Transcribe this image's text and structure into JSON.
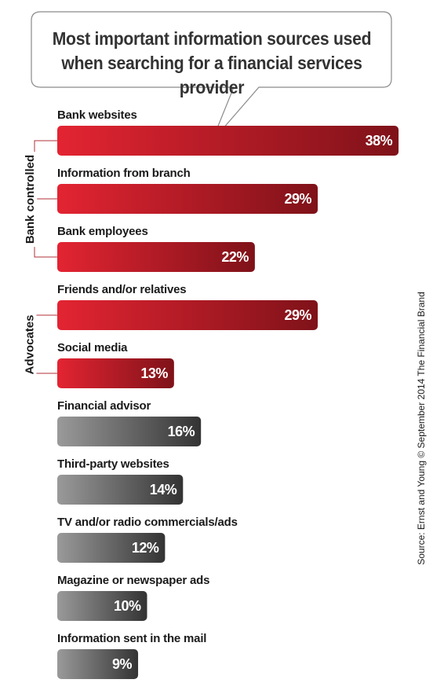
{
  "chart_data": {
    "type": "bar",
    "orientation": "horizontal",
    "title": "Most important information sources used when searching for a financial services provider",
    "categories": [
      "Bank websites",
      "Information from branch",
      "Bank employees",
      "Friends and/or relatives",
      "Social media",
      "Financial advisor",
      "Third-party websites",
      "TV and/or radio commercials/ads",
      "Magazine or newspaper ads",
      "Information sent in the mail"
    ],
    "values": [
      38,
      29,
      22,
      29,
      13,
      16,
      14,
      12,
      10,
      9
    ],
    "value_labels": [
      "38%",
      "29%",
      "22%",
      "29%",
      "13%",
      "16%",
      "14%",
      "12%",
      "10%",
      "9%"
    ],
    "groups": [
      {
        "label": "Bank controlled",
        "categories": [
          0,
          1,
          2
        ],
        "color": "#cc1f2d"
      },
      {
        "label": "Advocates",
        "categories": [
          3,
          4
        ],
        "color": "#cc1f2d"
      }
    ],
    "colors": {
      "red_start": "#e32432",
      "red_end": "#7f1219",
      "gray_start": "#9a9a9a",
      "gray_end": "#333333",
      "bracket": "#b03038"
    },
    "grid": false,
    "legend": "none",
    "source": "Source: Ernst and Young © September 2014 The Financial Brand"
  }
}
